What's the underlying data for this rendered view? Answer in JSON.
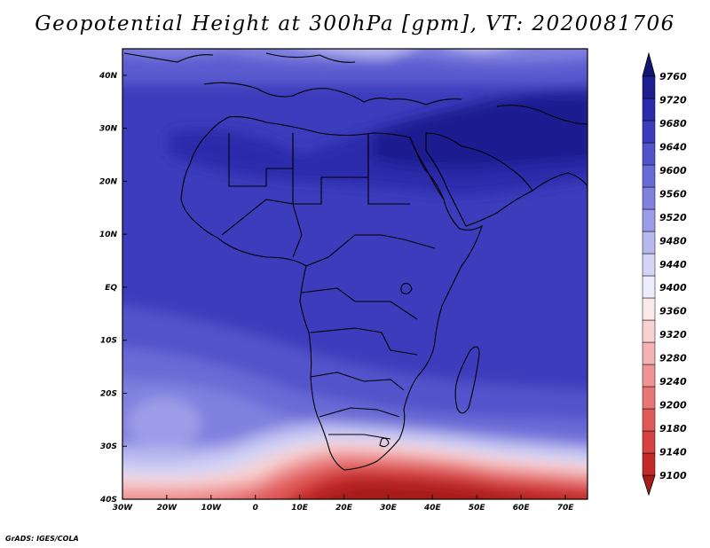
{
  "title": "Geopotential Height at 300hPa [gpm], VT: 2020081706",
  "credit": "GrADS: IGES/COLA",
  "map": {
    "lon_range": [
      -30,
      75
    ],
    "lat_range": [
      -40,
      45
    ],
    "lon_ticks": [
      "30W",
      "20W",
      "10W",
      "0",
      "10E",
      "20E",
      "30E",
      "40E",
      "50E",
      "60E",
      "70E"
    ],
    "lat_ticks": [
      "40S",
      "30S",
      "20S",
      "10S",
      "EQ",
      "10N",
      "20N",
      "30N",
      "40N"
    ],
    "field": "geopotential height 300hPa"
  },
  "colorbar": {
    "labels": [
      "9100",
      "9140",
      "9180",
      "9200",
      "9240",
      "9280",
      "9320",
      "9360",
      "9400",
      "9440",
      "9480",
      "9520",
      "9560",
      "9600",
      "9640",
      "9680",
      "9720",
      "9760"
    ],
    "colors": [
      "#a81c1c",
      "#c22a2a",
      "#d54242",
      "#e05a5a",
      "#e77777",
      "#ee9494",
      "#f3b3b3",
      "#f8d2d2",
      "#fceaea",
      "#ececfb",
      "#d4d4f6",
      "#b8b8ef",
      "#9c9ce8",
      "#8080df",
      "#6a6ad6",
      "#5252cb",
      "#3c3cbc",
      "#2b2bab",
      "#1e1e90",
      "#141472"
    ]
  }
}
